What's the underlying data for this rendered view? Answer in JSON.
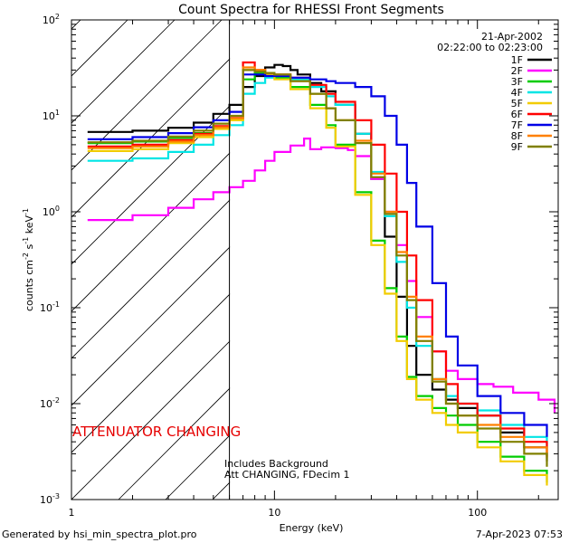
{
  "chart_data": {
    "type": "line",
    "title": "Count Spectra for RHESSI Front Segments",
    "xlabel": "Energy (keV)",
    "ylabel_parts": {
      "base": "counts cm",
      "exp1": "-2",
      "mid1": " s",
      "exp2": "-1",
      "mid2": " keV",
      "exp3": "-1"
    },
    "x_scale": "log",
    "y_scale": "log",
    "xlim": [
      1,
      250
    ],
    "ylim": [
      0.001,
      100
    ],
    "x_ticks": [
      {
        "value": 1,
        "label": "1"
      },
      {
        "value": 10,
        "label": "10"
      },
      {
        "value": 100,
        "label": "100"
      }
    ],
    "y_ticks": [
      {
        "value": 0.001,
        "base": "10",
        "exp": "-3"
      },
      {
        "value": 0.01,
        "base": "10",
        "exp": "-2"
      },
      {
        "value": 0.1,
        "base": "10",
        "exp": "-1"
      },
      {
        "value": 1,
        "base": "10",
        "exp": "0"
      },
      {
        "value": 10,
        "base": "10",
        "exp": "1"
      },
      {
        "value": 100,
        "base": "10",
        "exp": "2"
      }
    ],
    "attenuator_energy_kev": 6,
    "attenuator_label": "ATTENUATOR CHANGING",
    "date": "21-Apr-2002",
    "time_range": "02:22:00 to 02:23:00",
    "notes": [
      "Includes Background",
      "Att CHANGING, FDecim 1"
    ],
    "series": [
      {
        "name": "1F",
        "color": "#000000",
        "points": [
          [
            1.2,
            6.8
          ],
          [
            2,
            7
          ],
          [
            3,
            7.5
          ],
          [
            4,
            8.5
          ],
          [
            5,
            10.5
          ],
          [
            6,
            13
          ],
          [
            7,
            20
          ],
          [
            8,
            26
          ],
          [
            9,
            32
          ],
          [
            10,
            34
          ],
          [
            11,
            33
          ],
          [
            12,
            30
          ],
          [
            13,
            27
          ],
          [
            15,
            22
          ],
          [
            17,
            18
          ],
          [
            20,
            13
          ],
          [
            25,
            6.5
          ],
          [
            30,
            2.2
          ],
          [
            35,
            0.55
          ],
          [
            40,
            0.13
          ],
          [
            45,
            0.04
          ],
          [
            50,
            0.02
          ],
          [
            60,
            0.014
          ],
          [
            70,
            0.011
          ],
          [
            80,
            0.009
          ],
          [
            100,
            0.0075
          ],
          [
            130,
            0.005
          ],
          [
            170,
            0.0035
          ],
          [
            220,
            0.0025
          ]
        ]
      },
      {
        "name": "2F",
        "color": "#ff00ff",
        "points": [
          [
            1.2,
            0.82
          ],
          [
            2,
            0.92
          ],
          [
            3,
            1.1
          ],
          [
            4,
            1.35
          ],
          [
            5,
            1.6
          ],
          [
            6,
            1.8
          ],
          [
            7,
            2.1
          ],
          [
            8,
            2.7
          ],
          [
            9,
            3.4
          ],
          [
            10,
            4.2
          ],
          [
            12,
            4.9
          ],
          [
            14,
            5.8
          ],
          [
            15,
            4.5
          ],
          [
            17,
            4.7
          ],
          [
            20,
            4.6
          ],
          [
            23,
            4.4
          ],
          [
            25,
            3.8
          ],
          [
            30,
            2.2
          ],
          [
            35,
            1.0
          ],
          [
            40,
            0.45
          ],
          [
            45,
            0.19
          ],
          [
            50,
            0.08
          ],
          [
            60,
            0.035
          ],
          [
            70,
            0.022
          ],
          [
            80,
            0.018
          ],
          [
            100,
            0.016
          ],
          [
            120,
            0.015
          ],
          [
            150,
            0.013
          ],
          [
            200,
            0.011
          ],
          [
            240,
            0.008
          ]
        ]
      },
      {
        "name": "3F",
        "color": "#00cc00",
        "points": [
          [
            1.2,
            5.2
          ],
          [
            2,
            5.4
          ],
          [
            3,
            5.9
          ],
          [
            4,
            6.6
          ],
          [
            5,
            7.6
          ],
          [
            6,
            9.0
          ],
          [
            7,
            24
          ],
          [
            8,
            28
          ],
          [
            9,
            27
          ],
          [
            10,
            25
          ],
          [
            12,
            20
          ],
          [
            15,
            13
          ],
          [
            18,
            8
          ],
          [
            20,
            5
          ],
          [
            25,
            1.6
          ],
          [
            30,
            0.5
          ],
          [
            35,
            0.16
          ],
          [
            40,
            0.05
          ],
          [
            45,
            0.019
          ],
          [
            50,
            0.012
          ],
          [
            60,
            0.009
          ],
          [
            70,
            0.0075
          ],
          [
            80,
            0.006
          ],
          [
            100,
            0.004
          ],
          [
            130,
            0.0028
          ],
          [
            170,
            0.002
          ],
          [
            220,
            0.0015
          ]
        ]
      },
      {
        "name": "4F",
        "color": "#00e5e5",
        "points": [
          [
            1.2,
            3.4
          ],
          [
            2,
            3.6
          ],
          [
            3,
            4.2
          ],
          [
            4,
            5.0
          ],
          [
            5,
            6.3
          ],
          [
            6,
            8.0
          ],
          [
            7,
            17
          ],
          [
            8,
            22
          ],
          [
            9,
            25
          ],
          [
            10,
            26
          ],
          [
            12,
            24
          ],
          [
            15,
            20
          ],
          [
            18,
            16
          ],
          [
            20,
            13
          ],
          [
            25,
            6.5
          ],
          [
            30,
            2.6
          ],
          [
            35,
            0.9
          ],
          [
            40,
            0.3
          ],
          [
            45,
            0.1
          ],
          [
            50,
            0.04
          ],
          [
            60,
            0.018
          ],
          [
            70,
            0.012
          ],
          [
            80,
            0.01
          ],
          [
            100,
            0.0085
          ],
          [
            130,
            0.006
          ],
          [
            170,
            0.0045
          ],
          [
            220,
            0.0035
          ]
        ]
      },
      {
        "name": "5F",
        "color": "#f2cc00",
        "points": [
          [
            1.2,
            4.3
          ],
          [
            2,
            4.5
          ],
          [
            3,
            5.2
          ],
          [
            4,
            6.0
          ],
          [
            5,
            7.3
          ],
          [
            6,
            9.0
          ],
          [
            7,
            30
          ],
          [
            8,
            30
          ],
          [
            9,
            27
          ],
          [
            10,
            24
          ],
          [
            12,
            19
          ],
          [
            15,
            12
          ],
          [
            18,
            7.5
          ],
          [
            20,
            4.8
          ],
          [
            25,
            1.5
          ],
          [
            30,
            0.45
          ],
          [
            35,
            0.14
          ],
          [
            40,
            0.045
          ],
          [
            45,
            0.018
          ],
          [
            50,
            0.011
          ],
          [
            60,
            0.008
          ],
          [
            70,
            0.006
          ],
          [
            80,
            0.005
          ],
          [
            100,
            0.0035
          ],
          [
            130,
            0.0025
          ],
          [
            170,
            0.0018
          ],
          [
            220,
            0.0014
          ]
        ]
      },
      {
        "name": "6F",
        "color": "#ff0000",
        "points": [
          [
            1.2,
            4.8
          ],
          [
            2,
            5.0
          ],
          [
            3,
            5.6
          ],
          [
            4,
            6.5
          ],
          [
            5,
            7.8
          ],
          [
            6,
            9.5
          ],
          [
            7,
            36
          ],
          [
            8,
            30
          ],
          [
            9,
            28
          ],
          [
            10,
            27
          ],
          [
            12,
            25
          ],
          [
            15,
            21
          ],
          [
            18,
            17
          ],
          [
            20,
            14
          ],
          [
            25,
            9
          ],
          [
            30,
            5
          ],
          [
            35,
            2.5
          ],
          [
            40,
            1.0
          ],
          [
            45,
            0.35
          ],
          [
            50,
            0.12
          ],
          [
            60,
            0.035
          ],
          [
            70,
            0.016
          ],
          [
            80,
            0.01
          ],
          [
            100,
            0.0075
          ],
          [
            130,
            0.0055
          ],
          [
            170,
            0.004
          ],
          [
            220,
            0.0028
          ]
        ]
      },
      {
        "name": "7F",
        "color": "#0000e6",
        "points": [
          [
            1.2,
            5.7
          ],
          [
            2,
            6.0
          ],
          [
            3,
            6.6
          ],
          [
            4,
            7.6
          ],
          [
            5,
            9.0
          ],
          [
            6,
            11
          ],
          [
            7,
            27
          ],
          [
            8,
            27
          ],
          [
            9,
            26
          ],
          [
            10,
            26
          ],
          [
            12,
            25
          ],
          [
            15,
            24
          ],
          [
            18,
            23
          ],
          [
            20,
            22
          ],
          [
            25,
            20
          ],
          [
            30,
            16
          ],
          [
            35,
            10
          ],
          [
            40,
            5
          ],
          [
            45,
            2
          ],
          [
            50,
            0.7
          ],
          [
            60,
            0.18
          ],
          [
            70,
            0.05
          ],
          [
            80,
            0.025
          ],
          [
            100,
            0.012
          ],
          [
            130,
            0.008
          ],
          [
            170,
            0.006
          ],
          [
            220,
            0.0045
          ]
        ]
      },
      {
        "name": "8F",
        "color": "#ff8000",
        "points": [
          [
            1.2,
            4.6
          ],
          [
            2,
            4.8
          ],
          [
            3,
            5.4
          ],
          [
            4,
            6.3
          ],
          [
            5,
            7.6
          ],
          [
            6,
            9.4
          ],
          [
            7,
            32
          ],
          [
            8,
            30
          ],
          [
            9,
            28
          ],
          [
            10,
            27
          ],
          [
            12,
            23
          ],
          [
            15,
            17
          ],
          [
            18,
            12
          ],
          [
            20,
            9
          ],
          [
            25,
            5.5
          ],
          [
            30,
            2.5
          ],
          [
            35,
            1.0
          ],
          [
            40,
            0.38
          ],
          [
            45,
            0.13
          ],
          [
            50,
            0.05
          ],
          [
            60,
            0.018
          ],
          [
            70,
            0.01
          ],
          [
            80,
            0.0075
          ],
          [
            100,
            0.006
          ],
          [
            130,
            0.0045
          ],
          [
            170,
            0.0035
          ],
          [
            220,
            0.0027
          ]
        ]
      },
      {
        "name": "9F",
        "color": "#808000",
        "points": [
          [
            1.2,
            5.3
          ],
          [
            2,
            5.5
          ],
          [
            3,
            6.1
          ],
          [
            4,
            7.0
          ],
          [
            5,
            8.3
          ],
          [
            6,
            10
          ],
          [
            7,
            30
          ],
          [
            8,
            29
          ],
          [
            9,
            28
          ],
          [
            10,
            27
          ],
          [
            12,
            23
          ],
          [
            15,
            17
          ],
          [
            18,
            12
          ],
          [
            20,
            9
          ],
          [
            25,
            5.2
          ],
          [
            30,
            2.3
          ],
          [
            35,
            0.95
          ],
          [
            40,
            0.35
          ],
          [
            45,
            0.12
          ],
          [
            50,
            0.045
          ],
          [
            60,
            0.017
          ],
          [
            70,
            0.01
          ],
          [
            80,
            0.0075
          ],
          [
            100,
            0.0055
          ],
          [
            130,
            0.004
          ],
          [
            170,
            0.003
          ],
          [
            220,
            0.0022
          ]
        ]
      }
    ]
  },
  "footer": {
    "generated_by": "Generated by hsi_min_spectra_plot.pro",
    "plot_date": "7-Apr-2023 07:53"
  }
}
